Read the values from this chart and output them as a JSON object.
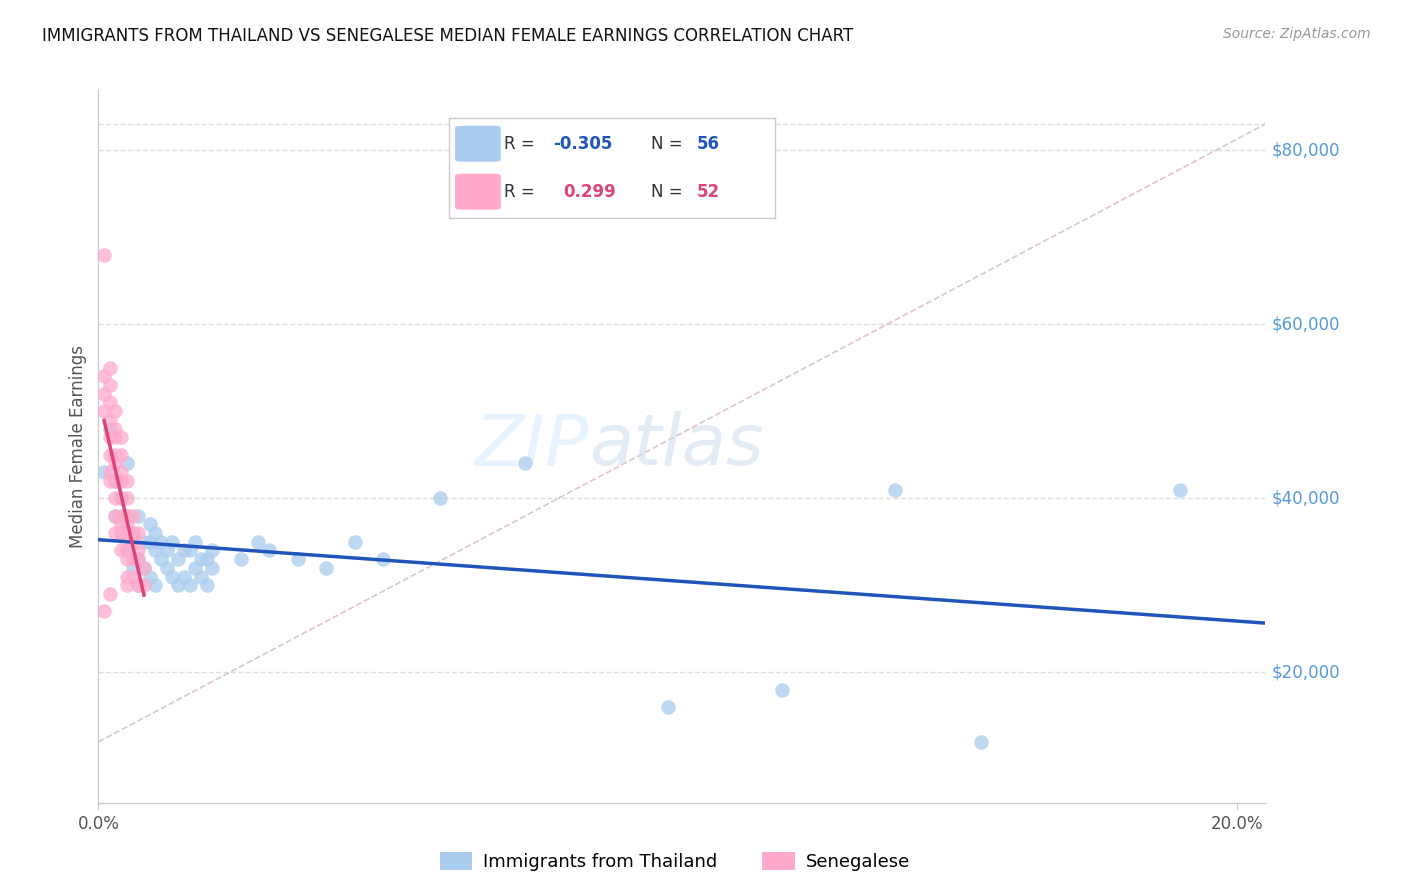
{
  "title": "IMMIGRANTS FROM THAILAND VS SENEGALESE MEDIAN FEMALE EARNINGS CORRELATION CHART",
  "source": "Source: ZipAtlas.com",
  "ylabel": "Median Female Earnings",
  "y_ticks": [
    20000,
    40000,
    60000,
    80000
  ],
  "y_tick_labels": [
    "$20,000",
    "$40,000",
    "$60,000",
    "$80,000"
  ],
  "y_lim": [
    5000,
    87000
  ],
  "x_lim": [
    0.0,
    0.205
  ],
  "blue_scatter_color": "#aaccee",
  "pink_scatter_color": "#ffaacc",
  "blue_line_color": "#2255bb",
  "pink_line_color": "#dd4477",
  "diagonal_color": "#ddbbcc",
  "background_color": "#ffffff",
  "grid_color": "#dddddd",
  "title_color": "#111111",
  "source_color": "#999999",
  "right_label_color": "#5599dd",
  "legend_box_color": "#aaccee",
  "legend_box_color2": "#ffaacc",
  "legend2_blue": "Immigrants from Thailand",
  "legend2_pink": "Senegalese",
  "blue_points": [
    [
      0.001,
      43000
    ],
    [
      0.002,
      48000
    ],
    [
      0.003,
      42000
    ],
    [
      0.003,
      38000
    ],
    [
      0.004,
      40000
    ],
    [
      0.004,
      36000
    ],
    [
      0.005,
      44000
    ],
    [
      0.005,
      38000
    ],
    [
      0.005,
      34000
    ],
    [
      0.006,
      36000
    ],
    [
      0.006,
      32000
    ],
    [
      0.007,
      38000
    ],
    [
      0.007,
      33000
    ],
    [
      0.007,
      30000
    ],
    [
      0.008,
      35000
    ],
    [
      0.008,
      32000
    ],
    [
      0.009,
      37000
    ],
    [
      0.009,
      35000
    ],
    [
      0.009,
      31000
    ],
    [
      0.01,
      36000
    ],
    [
      0.01,
      34000
    ],
    [
      0.01,
      30000
    ],
    [
      0.011,
      35000
    ],
    [
      0.011,
      33000
    ],
    [
      0.012,
      34000
    ],
    [
      0.012,
      32000
    ],
    [
      0.013,
      35000
    ],
    [
      0.013,
      31000
    ],
    [
      0.014,
      33000
    ],
    [
      0.014,
      30000
    ],
    [
      0.015,
      34000
    ],
    [
      0.015,
      31000
    ],
    [
      0.016,
      34000
    ],
    [
      0.016,
      30000
    ],
    [
      0.017,
      35000
    ],
    [
      0.017,
      32000
    ],
    [
      0.018,
      33000
    ],
    [
      0.018,
      31000
    ],
    [
      0.019,
      33000
    ],
    [
      0.019,
      30000
    ],
    [
      0.02,
      34000
    ],
    [
      0.02,
      32000
    ],
    [
      0.025,
      33000
    ],
    [
      0.028,
      35000
    ],
    [
      0.03,
      34000
    ],
    [
      0.035,
      33000
    ],
    [
      0.04,
      32000
    ],
    [
      0.045,
      35000
    ],
    [
      0.05,
      33000
    ],
    [
      0.06,
      40000
    ],
    [
      0.075,
      44000
    ],
    [
      0.1,
      16000
    ],
    [
      0.12,
      18000
    ],
    [
      0.14,
      41000
    ],
    [
      0.155,
      12000
    ],
    [
      0.19,
      41000
    ]
  ],
  "pink_points": [
    [
      0.001,
      68000
    ],
    [
      0.001,
      54000
    ],
    [
      0.001,
      52000
    ],
    [
      0.001,
      50000
    ],
    [
      0.002,
      55000
    ],
    [
      0.002,
      53000
    ],
    [
      0.002,
      51000
    ],
    [
      0.002,
      49000
    ],
    [
      0.002,
      47000
    ],
    [
      0.002,
      45000
    ],
    [
      0.002,
      43000
    ],
    [
      0.002,
      42000
    ],
    [
      0.003,
      50000
    ],
    [
      0.003,
      48000
    ],
    [
      0.003,
      47000
    ],
    [
      0.003,
      45000
    ],
    [
      0.003,
      44000
    ],
    [
      0.003,
      42000
    ],
    [
      0.003,
      40000
    ],
    [
      0.003,
      38000
    ],
    [
      0.003,
      36000
    ],
    [
      0.004,
      47000
    ],
    [
      0.004,
      45000
    ],
    [
      0.004,
      43000
    ],
    [
      0.004,
      42000
    ],
    [
      0.004,
      40000
    ],
    [
      0.004,
      38000
    ],
    [
      0.004,
      37000
    ],
    [
      0.004,
      36000
    ],
    [
      0.004,
      34000
    ],
    [
      0.005,
      42000
    ],
    [
      0.005,
      40000
    ],
    [
      0.005,
      38000
    ],
    [
      0.005,
      37000
    ],
    [
      0.005,
      36000
    ],
    [
      0.005,
      34000
    ],
    [
      0.005,
      33000
    ],
    [
      0.005,
      31000
    ],
    [
      0.005,
      30000
    ],
    [
      0.006,
      38000
    ],
    [
      0.006,
      36000
    ],
    [
      0.006,
      35000
    ],
    [
      0.006,
      33000
    ],
    [
      0.006,
      31000
    ],
    [
      0.007,
      36000
    ],
    [
      0.007,
      34000
    ],
    [
      0.007,
      33000
    ],
    [
      0.007,
      30000
    ],
    [
      0.001,
      27000
    ],
    [
      0.002,
      29000
    ],
    [
      0.008,
      32000
    ],
    [
      0.008,
      30000
    ]
  ]
}
